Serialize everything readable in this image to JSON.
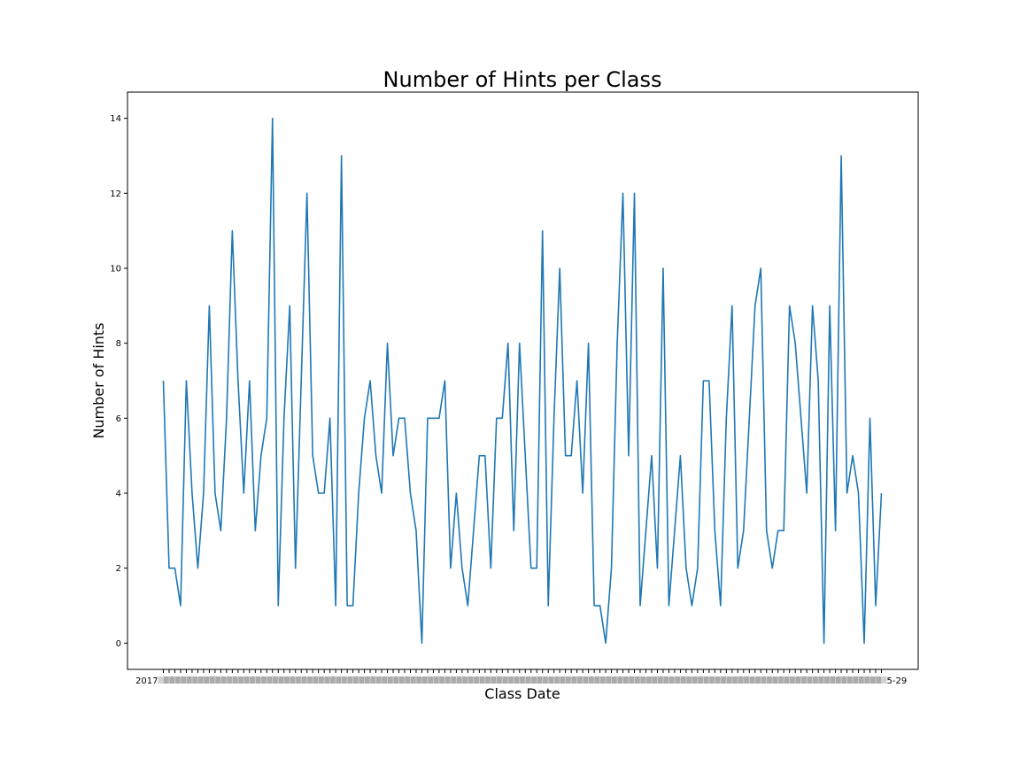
{
  "chart_data": {
    "type": "line",
    "title": "Number of Hints per Class",
    "xlabel": "Class Date",
    "ylabel": "Number of Hints",
    "ylim": [
      -0.7,
      14.7
    ],
    "yticks": [
      0,
      2,
      4,
      6,
      8,
      10,
      12,
      14
    ],
    "grid": false,
    "legend": "none",
    "x_tick_first": "2017",
    "x_tick_last": "5-29",
    "line_color": "#1f77b4",
    "series": [
      {
        "values": [
          7,
          2,
          2,
          1,
          7,
          4,
          2,
          4,
          9,
          4,
          3,
          6,
          11,
          7,
          4,
          7,
          3,
          5,
          6,
          14,
          1,
          6,
          9,
          2,
          7,
          12,
          5,
          4,
          4,
          6,
          1,
          13,
          1,
          1,
          4,
          6,
          7,
          5,
          4,
          8,
          5,
          6,
          6,
          4,
          3,
          0,
          6,
          6,
          6,
          7,
          2,
          4,
          2,
          1,
          3,
          5,
          5,
          2,
          6,
          6,
          8,
          3,
          8,
          5,
          2,
          2,
          11,
          1,
          6,
          10,
          5,
          5,
          7,
          4,
          8,
          1,
          1,
          0,
          2,
          8,
          12,
          5,
          12,
          1,
          3,
          5,
          2,
          10,
          1,
          3,
          5,
          2,
          1,
          2,
          7,
          7,
          3,
          1,
          6,
          9,
          2,
          3,
          6,
          9,
          10,
          3,
          2,
          3,
          3,
          9,
          8,
          6,
          4,
          9,
          7,
          0,
          9,
          3,
          13,
          4,
          5,
          4,
          0,
          6,
          1,
          4
        ]
      }
    ]
  }
}
